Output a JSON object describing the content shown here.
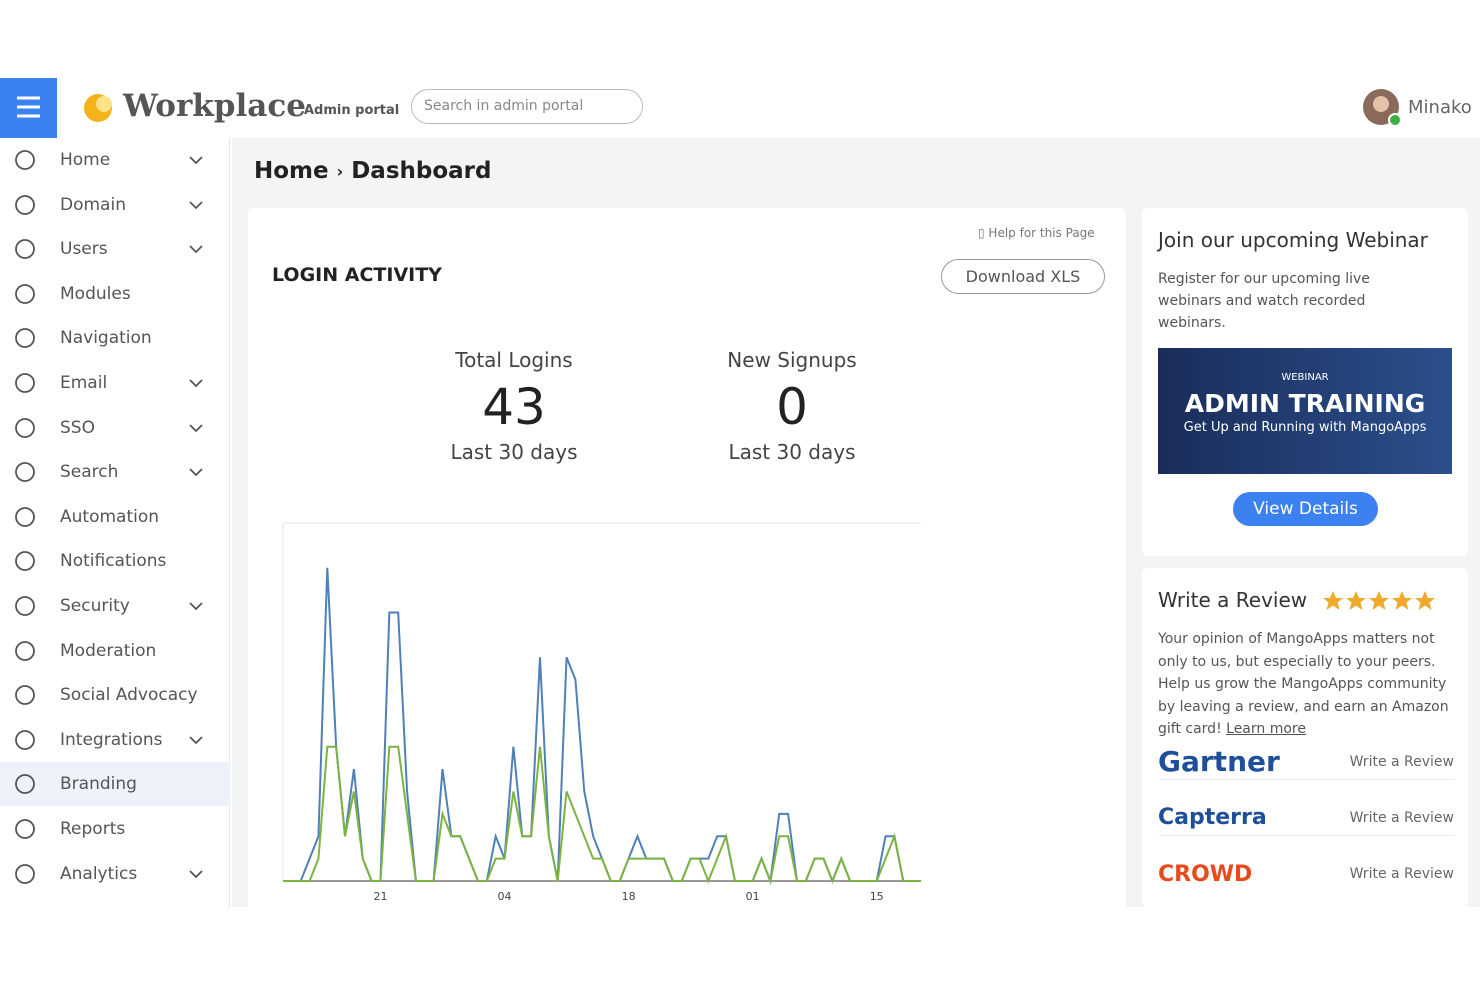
{
  "header": {
    "logo": "Workplace",
    "subtitle": "Admin portal",
    "search_placeholder": "Search in admin portal",
    "user": "Minako"
  },
  "sidebar": {
    "items": [
      {
        "label": "Home",
        "expandable": true
      },
      {
        "label": "Domain",
        "expandable": true
      },
      {
        "label": "Users",
        "expandable": true
      },
      {
        "label": "Modules",
        "expandable": false
      },
      {
        "label": "Navigation",
        "expandable": false
      },
      {
        "label": "Email",
        "expandable": true
      },
      {
        "label": "SSO",
        "expandable": true
      },
      {
        "label": "Search",
        "expandable": true
      },
      {
        "label": "Automation",
        "expandable": false
      },
      {
        "label": "Notifications",
        "expandable": false
      },
      {
        "label": "Security",
        "expandable": true
      },
      {
        "label": "Moderation",
        "expandable": false
      },
      {
        "label": "Social Advocacy",
        "expandable": false
      },
      {
        "label": "Integrations",
        "expandable": true
      },
      {
        "label": "Branding",
        "expandable": false,
        "active": true
      },
      {
        "label": "Reports",
        "expandable": false
      },
      {
        "label": "Analytics",
        "expandable": true
      }
    ]
  },
  "breadcrumb": [
    "Home",
    "Dashboard"
  ],
  "login_activity": {
    "title": "LOGIN ACTIVITY",
    "help": "Help for this Page",
    "download": "Download XLS",
    "stats": [
      {
        "label": "Total Logins",
        "value": "43",
        "period": "Last 30 days"
      },
      {
        "label": "New Signups",
        "value": "0",
        "period": "Last 30 days"
      }
    ]
  },
  "chart_data": {
    "type": "line",
    "categories": [
      null,
      null,
      null,
      null,
      null,
      null,
      null,
      null,
      null,
      null,
      null,
      "21",
      null,
      null,
      null,
      null,
      null,
      null,
      null,
      null,
      null,
      null,
      null,
      null,
      null,
      "04",
      null,
      null,
      null,
      null,
      null,
      null,
      null,
      null,
      null,
      null,
      null,
      null,
      null,
      "18",
      null,
      null,
      null,
      null,
      null,
      null,
      null,
      null,
      null,
      null,
      null,
      null,
      null,
      "01",
      null,
      null,
      null,
      null,
      null,
      null,
      null,
      null,
      null,
      null,
      null,
      null,
      null,
      "15",
      null,
      null,
      null,
      null,
      null
    ],
    "series": [
      {
        "color": "#4f81b8",
        "values": [
          0,
          0,
          0,
          0.5,
          1,
          7,
          3,
          1,
          2.5,
          0.5,
          0,
          0,
          6,
          6,
          2,
          0,
          0,
          0,
          2.5,
          1,
          1,
          0.5,
          0,
          0,
          1,
          0.5,
          3,
          1,
          1,
          5,
          1,
          0,
          5,
          4.5,
          2,
          1,
          0.5,
          0,
          0,
          0.5,
          1,
          0.5,
          0.5,
          0.5,
          0,
          0,
          0.5,
          0.5,
          0.5,
          1,
          1,
          0,
          0,
          0,
          0.5,
          0,
          1.5,
          1.5,
          0,
          0,
          0.5,
          0.5,
          0,
          0.5,
          0,
          0,
          0,
          0,
          1,
          1,
          0,
          0,
          0
        ]
      },
      {
        "color": "#7cb342",
        "values": [
          0,
          0,
          0,
          0,
          0.5,
          3,
          3,
          1,
          2,
          0.5,
          0,
          0,
          3,
          3,
          1.5,
          0,
          0,
          0,
          1.5,
          1,
          1,
          0.5,
          0,
          0,
          0.5,
          0.5,
          2,
          1,
          1,
          3,
          1,
          0,
          2,
          1.5,
          1,
          0.5,
          0.5,
          0,
          0,
          0.5,
          0.5,
          0.5,
          0.5,
          0.5,
          0,
          0,
          0.5,
          0.5,
          0,
          0.5,
          1,
          0,
          0,
          0,
          0.5,
          0,
          1,
          1,
          0,
          0,
          0.5,
          0.5,
          0,
          0.5,
          0,
          0,
          0,
          0,
          0.5,
          1,
          0,
          0,
          0
        ]
      }
    ],
    "ylim": [
      0,
      8
    ]
  },
  "webinar": {
    "title": "Join our upcoming Webinar",
    "text": "Register for our upcoming live webinars and watch recorded webinars.",
    "banner_kicker": "WEBINAR",
    "banner_title": "ADMIN TRAINING",
    "banner_subtitle": "Get Up and Running with MangoApps",
    "button": "View Details"
  },
  "review": {
    "title": "Write a Review",
    "text": "Your opinion of MangoApps matters not only to us, but especially to your peers. Help us grow the MangoApps community by leaving a review, and earn an Amazon gift card!",
    "link": "Learn more",
    "sites": [
      {
        "name": "Gartner",
        "action": "Write a Review"
      },
      {
        "name": "Capterra",
        "action": "Write a Review"
      },
      {
        "name": "CROWD",
        "action": "Write a Review"
      }
    ]
  }
}
